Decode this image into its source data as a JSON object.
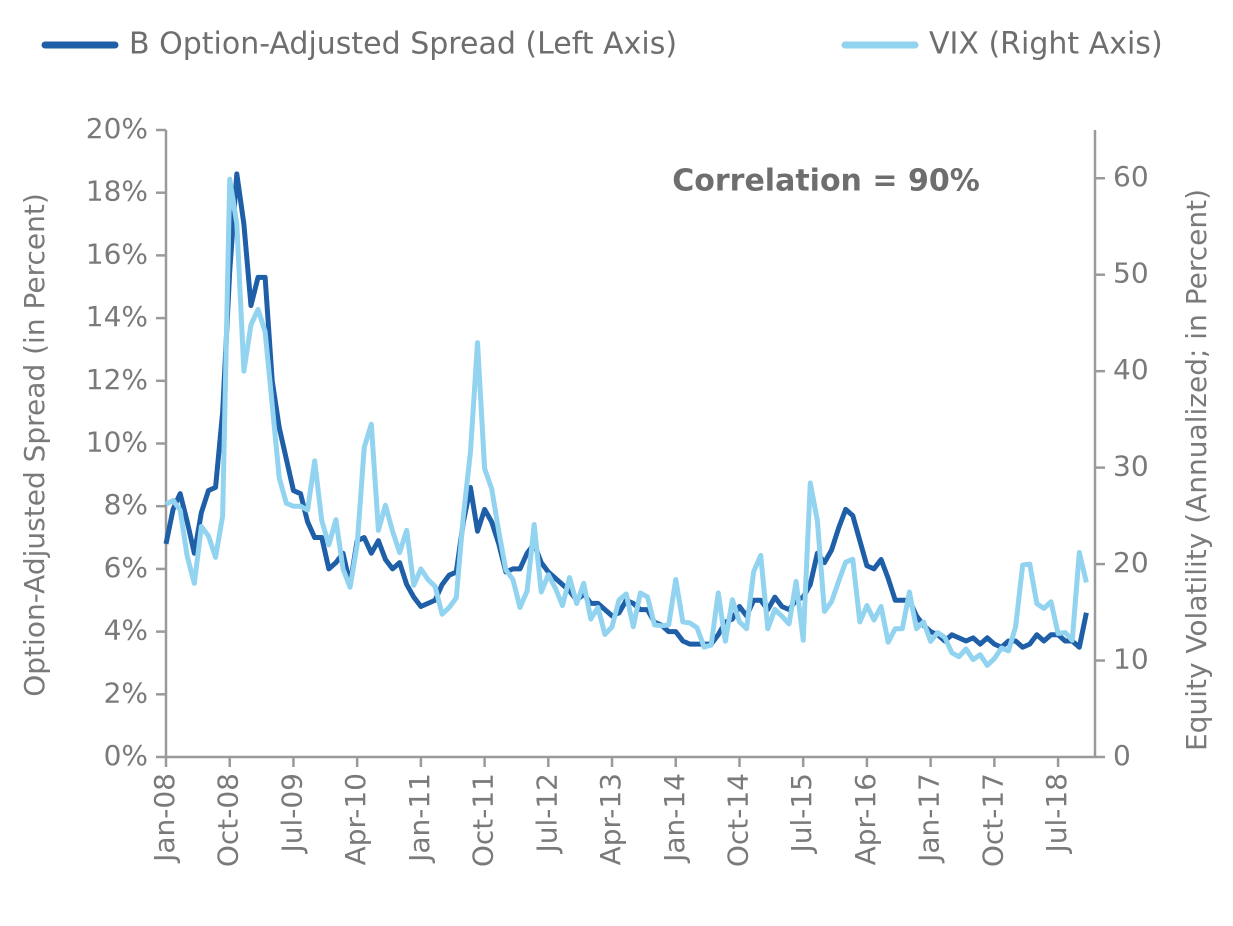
{
  "chart_data": {
    "type": "line",
    "annotation": "Correlation = 90%",
    "y_label": "Option-Adjusted Spread (in Percent)",
    "y2_label": "Equity Volatility (Annualized; in Percent)",
    "categories": [
      "Jan-08",
      null,
      null,
      null,
      null,
      null,
      null,
      null,
      null,
      "Oct-08",
      null,
      null,
      null,
      null,
      null,
      null,
      null,
      null,
      "Jul-09",
      null,
      null,
      null,
      null,
      null,
      null,
      null,
      null,
      "Apr-10",
      null,
      null,
      null,
      null,
      null,
      null,
      null,
      null,
      "Jan-11",
      null,
      null,
      null,
      null,
      null,
      null,
      null,
      null,
      "Oct-11",
      null,
      null,
      null,
      null,
      null,
      null,
      null,
      null,
      "Jul-12",
      null,
      null,
      null,
      null,
      null,
      null,
      null,
      null,
      "Apr-13",
      null,
      null,
      null,
      null,
      null,
      null,
      null,
      null,
      "Jan-14",
      null,
      null,
      null,
      null,
      null,
      null,
      null,
      null,
      "Oct-14",
      null,
      null,
      null,
      null,
      null,
      null,
      null,
      null,
      "Jul-15",
      null,
      null,
      null,
      null,
      null,
      null,
      null,
      null,
      "Apr-16",
      null,
      null,
      null,
      null,
      null,
      null,
      null,
      null,
      "Jan-17",
      null,
      null,
      null,
      null,
      null,
      null,
      null,
      null,
      "Oct-17",
      null,
      null,
      null,
      null,
      null,
      null,
      null,
      null,
      "Jul-18",
      null,
      null,
      null,
      null
    ],
    "series": [
      {
        "name": "B Option-Adjusted Spread (Left Axis)",
        "color": "#1f5fa8",
        "axis": "y",
        "values": [
          6.8,
          7.9,
          8.4,
          7.5,
          6.5,
          7.8,
          8.5,
          8.6,
          11,
          15.5,
          18.6,
          17.0,
          14.4,
          15.3,
          15.3,
          12.0,
          10.5,
          9.5,
          8.5,
          8.4,
          7.5,
          7.0,
          7.0,
          6.0,
          6.2,
          6.5,
          5.5,
          6.9,
          7.0,
          6.5,
          6.9,
          6.3,
          6.0,
          6.2,
          5.5,
          5.1,
          4.8,
          4.9,
          5.0,
          5.5,
          5.8,
          5.9,
          7.5,
          8.6,
          7.2,
          7.9,
          7.5,
          6.8,
          5.9,
          6.0,
          6.0,
          6.5,
          6.8,
          6.2,
          5.9,
          5.7,
          5.5,
          5.3,
          5.0,
          5.2,
          4.9,
          4.9,
          4.7,
          4.5,
          4.6,
          5.0,
          4.9,
          4.7,
          4.7,
          4.3,
          4.2,
          4.0,
          4.0,
          3.7,
          3.6,
          3.6,
          3.6,
          3.6,
          3.9,
          4.3,
          4.4,
          4.8,
          4.5,
          5.0,
          5.0,
          4.7,
          5.1,
          4.8,
          4.7,
          5.0,
          5.1,
          5.5,
          6.5,
          6.2,
          6.6,
          7.3,
          7.9,
          7.7,
          6.9,
          6.1,
          6.0,
          6.3,
          5.7,
          5.0,
          5.0,
          5.0,
          4.5,
          4.2,
          4.0,
          3.9,
          3.7,
          3.9,
          3.8,
          3.7,
          3.8,
          3.6,
          3.8,
          3.6,
          3.5,
          3.7,
          3.7,
          3.5,
          3.6,
          3.9,
          3.7,
          3.9,
          3.9,
          3.7,
          3.7,
          3.5,
          4.6
        ]
      },
      {
        "name": "VIX (Right Axis)",
        "color": "#92d3f0",
        "axis": "y2",
        "values": [
          26.2,
          26.6,
          25.6,
          20.8,
          18.0,
          23.9,
          22.9,
          20.7,
          25.0,
          59.9,
          55.3,
          40.0,
          44.8,
          46.4,
          44.1,
          36.5,
          28.9,
          26.3,
          26.0,
          26.0,
          25.6,
          30.7,
          24.5,
          22.0,
          24.6,
          19.5,
          17.6,
          22.0,
          32.1,
          34.5,
          23.5,
          26.1,
          23.4,
          21.2,
          23.5,
          17.8,
          19.5,
          18.4,
          17.7,
          14.8,
          15.5,
          16.5,
          25.0,
          31.6,
          42.96,
          29.9,
          27.8,
          23.4,
          19.4,
          18.4,
          15.5,
          17.2,
          24.1,
          17.1,
          18.9,
          17.5,
          15.7,
          18.6,
          15.9,
          18.0,
          14.3,
          15.5,
          12.7,
          13.5,
          16.3,
          16.9,
          13.5,
          17.0,
          16.6,
          13.7,
          13.6,
          13.7,
          18.4,
          14.0,
          13.9,
          13.4,
          11.4,
          11.6,
          17.0,
          12.0,
          16.3,
          14.0,
          13.3,
          19.2,
          20.9,
          13.3,
          15.3,
          14.6,
          13.8,
          18.2,
          12.1,
          28.4,
          24.5,
          15.1,
          16.1,
          18.2,
          20.2,
          20.5,
          14.0,
          15.7,
          14.2,
          15.6,
          11.9,
          13.3,
          13.3,
          17.1,
          13.3,
          14.0,
          11.99,
          12.9,
          12.4,
          10.8,
          10.4,
          11.2,
          10.1,
          10.6,
          9.5,
          10.2,
          11.3,
          11.0,
          13.5,
          19.9,
          20.0,
          15.9,
          15.4,
          16.1,
          12.8,
          12.9,
          12.1,
          21.2,
          18.1
        ]
      }
    ],
    "ylim": [
      0,
      20
    ],
    "yticks": [
      {
        "value": 0,
        "label": "0%"
      },
      {
        "value": 2,
        "label": "2%"
      },
      {
        "value": 4,
        "label": "4%"
      },
      {
        "value": 6,
        "label": "6%"
      },
      {
        "value": 8,
        "label": "8%"
      },
      {
        "value": 10,
        "label": "10%"
      },
      {
        "value": 12,
        "label": "12%"
      },
      {
        "value": 14,
        "label": "14%"
      },
      {
        "value": 16,
        "label": "16%"
      },
      {
        "value": 18,
        "label": "18%"
      },
      {
        "value": 20,
        "label": "20%"
      }
    ],
    "y2lim": [
      0,
      65
    ],
    "y2ticks": [
      0,
      10,
      20,
      30,
      40,
      50,
      60
    ],
    "grid": false,
    "legend": "top"
  }
}
